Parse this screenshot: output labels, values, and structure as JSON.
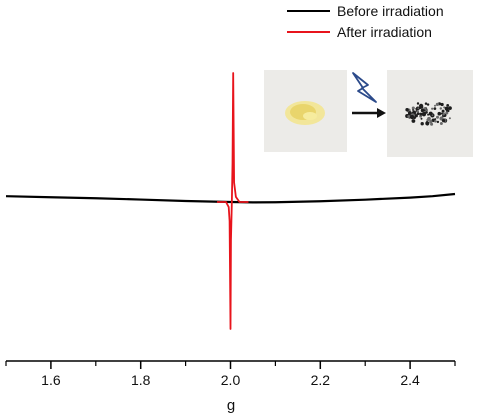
{
  "chart_data": {
    "type": "line",
    "xlabel": "g",
    "ylabel": "",
    "xlim": [
      1.5,
      2.5
    ],
    "ylim": [
      -1,
      1
    ],
    "x_ticks": [
      "1.6",
      "1.8",
      "2.0",
      "2.2",
      "2.4"
    ],
    "x_tick_values": [
      1.6,
      1.8,
      2.0,
      2.2,
      2.4
    ],
    "grid": false,
    "legend_position": "top-right",
    "series": [
      {
        "name": "Before irradiation",
        "color": "#000000",
        "x": [
          1.5,
          1.6,
          1.7,
          1.8,
          1.9,
          1.95,
          2.0,
          2.05,
          2.1,
          2.2,
          2.3,
          2.4,
          2.45,
          2.5
        ],
        "y": [
          0.045,
          0.037,
          0.029,
          0.019,
          0.008,
          0.004,
          0.0,
          -0.003,
          -0.002,
          0.006,
          0.018,
          0.034,
          0.045,
          0.062
        ]
      },
      {
        "name": "After irradiation",
        "color": "#e8141c",
        "x": [
          1.97,
          1.99,
          1.996,
          1.998,
          2.0,
          2.001,
          2.003,
          2.0045,
          2.006,
          2.008,
          2.012,
          2.02,
          2.04
        ],
        "y": [
          0.0,
          0.0,
          -0.04,
          -0.15,
          -1.0,
          -0.3,
          0.0,
          0.3,
          1.0,
          0.15,
          0.04,
          0.0,
          0.0
        ]
      }
    ],
    "inset": {
      "arrow": "right-arrow",
      "icon": "lightning-bolt-icon",
      "before_sample_color": "#f0e08a",
      "after_sample_color": "#2a2a2a"
    }
  }
}
